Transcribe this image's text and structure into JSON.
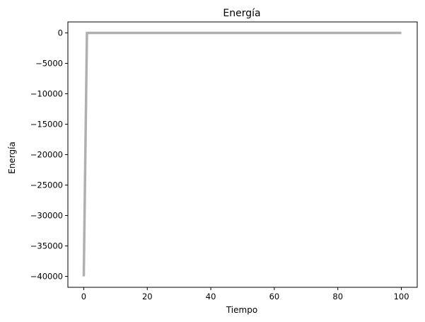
{
  "chart_data": {
    "type": "line",
    "title": "Energía",
    "xlabel": "Tiempo",
    "ylabel": "Energía",
    "xlim": [
      -5,
      105
    ],
    "ylim": [
      -41800,
      1800
    ],
    "xticks": [
      0,
      20,
      40,
      60,
      80,
      100
    ],
    "xtick_labels": [
      "0",
      "20",
      "40",
      "60",
      "80",
      "100"
    ],
    "yticks": [
      0,
      -5000,
      -10000,
      -15000,
      -20000,
      -25000,
      -30000,
      -35000,
      -40000
    ],
    "ytick_labels": [
      "0",
      "−5000",
      "−10000",
      "−15000",
      "−20000",
      "−25000",
      "−30000",
      "−35000",
      "−40000"
    ],
    "grid": false,
    "series": [
      {
        "color": "#b0b0b0",
        "x": [
          0,
          1,
          2,
          5,
          10,
          20,
          30,
          40,
          50,
          60,
          70,
          80,
          90,
          100
        ],
        "y": [
          -40000,
          0,
          0,
          0,
          0,
          0,
          0,
          0,
          0,
          0,
          0,
          0,
          0,
          0
        ]
      }
    ]
  }
}
